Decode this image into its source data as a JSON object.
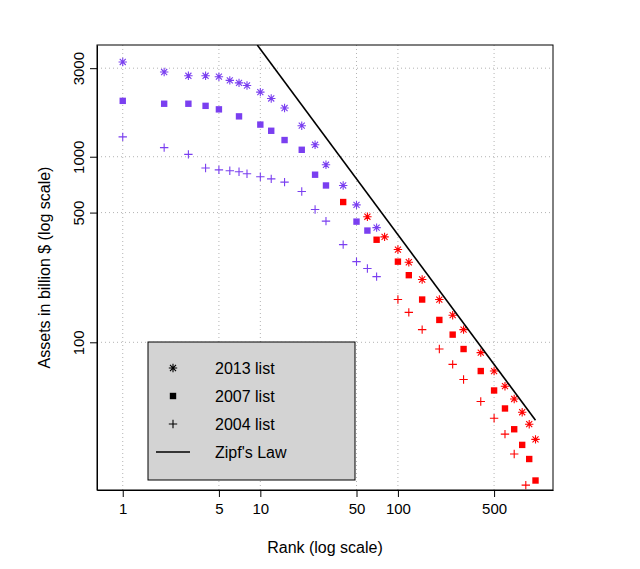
{
  "chart_data": {
    "type": "scatter",
    "xlabel": "Rank (log scale)",
    "ylabel": "Assets in billion $ (log scale)",
    "log": true,
    "grid": true,
    "legend": "bottomleft",
    "xlim": [
      0.65,
      1340
    ],
    "ylim": [
      16,
      4000
    ],
    "xticks": [
      1,
      5,
      10,
      50,
      100,
      500
    ],
    "yticks": [
      100,
      500,
      1000,
      3000
    ],
    "series": [
      {
        "name": "2013 list",
        "marker": "asterisk",
        "color": "#7a3ff0",
        "x": [
          1,
          2,
          3,
          4,
          5,
          6,
          7,
          8,
          10,
          12,
          15,
          20,
          25,
          30,
          40,
          50,
          60,
          70,
          80,
          100,
          120,
          150,
          200,
          250,
          300,
          400,
          500,
          600,
          700,
          800,
          900,
          1000
        ],
        "values": [
          3240,
          2860,
          2730,
          2730,
          2700,
          2580,
          2500,
          2420,
          2230,
          2060,
          1830,
          1470,
          1160,
          905,
          700,
          550,
          475,
          415,
          370,
          316,
          270,
          218,
          170,
          140,
          117,
          88,
          70,
          58,
          49.5,
          42,
          36.2,
          30
        ],
        "colors": [
          "#7a3ff0",
          "#7a3ff0",
          "#7a3ff0",
          "#7a3ff0",
          "#7a3ff0",
          "#7a3ff0",
          "#7a3ff0",
          "#7a3ff0",
          "#7a3ff0",
          "#7a3ff0",
          "#7a3ff0",
          "#7a3ff0",
          "#7a3ff0",
          "#7a3ff0",
          "#7a3ff0",
          "#7a3ff0",
          "#ff0000",
          "#7a3ff0",
          "#ff0000",
          "#ff0000",
          "#ff0000",
          "#ff0000",
          "#ff0000",
          "#ff0000",
          "#ff0000",
          "#ff0000",
          "#ff0000",
          "#ff0000",
          "#ff0000",
          "#ff0000",
          "#ff0000",
          "#ff0000"
        ]
      },
      {
        "name": "2007 list",
        "marker": "square",
        "color": "#7a3ff0",
        "x": [
          1,
          2,
          3,
          4,
          5,
          7,
          10,
          12,
          15,
          20,
          25,
          30,
          40,
          50,
          60,
          70,
          100,
          120,
          150,
          200,
          250,
          300,
          400,
          500,
          600,
          700,
          800,
          900,
          1000
        ],
        "values": [
          2000,
          1930,
          1930,
          1880,
          1800,
          1650,
          1490,
          1380,
          1230,
          1090,
          800,
          700,
          570,
          447,
          400,
          357,
          272,
          230,
          170,
          132,
          110,
          92,
          70,
          55,
          44,
          34,
          28,
          23.5,
          18
        ],
        "colors": [
          "#7a3ff0",
          "#7a3ff0",
          "#7a3ff0",
          "#7a3ff0",
          "#7a3ff0",
          "#7a3ff0",
          "#7a3ff0",
          "#7a3ff0",
          "#7a3ff0",
          "#7a3ff0",
          "#7a3ff0",
          "#7a3ff0",
          "#ff0000",
          "#7a3ff0",
          "#7a3ff0",
          "#ff0000",
          "#ff0000",
          "#ff0000",
          "#ff0000",
          "#ff0000",
          "#ff0000",
          "#ff0000",
          "#ff0000",
          "#ff0000",
          "#ff0000",
          "#ff0000",
          "#ff0000",
          "#ff0000",
          "#ff0000"
        ]
      },
      {
        "name": "2004 list",
        "marker": "plus",
        "color": "#7a3ff0",
        "x": [
          1,
          2,
          3,
          4,
          5,
          6,
          7,
          8,
          10,
          12,
          15,
          20,
          25,
          30,
          40,
          50,
          60,
          70,
          100,
          120,
          150,
          200,
          250,
          300,
          400,
          500,
          600,
          700,
          850
        ],
        "values": [
          1280,
          1120,
          1030,
          870,
          850,
          840,
          830,
          810,
          780,
          760,
          730,
          650,
          520,
          450,
          336,
          272,
          250,
          226,
          170,
          145,
          117,
          92,
          76,
          63,
          48,
          39,
          32,
          25,
          17
        ],
        "colors": [
          "#7a3ff0",
          "#7a3ff0",
          "#7a3ff0",
          "#7a3ff0",
          "#7a3ff0",
          "#7a3ff0",
          "#7a3ff0",
          "#7a3ff0",
          "#7a3ff0",
          "#7a3ff0",
          "#7a3ff0",
          "#7a3ff0",
          "#7a3ff0",
          "#7a3ff0",
          "#7a3ff0",
          "#7a3ff0",
          "#7a3ff0",
          "#7a3ff0",
          "#ff0000",
          "#ff0000",
          "#ff0000",
          "#ff0000",
          "#ff0000",
          "#ff0000",
          "#ff0000",
          "#ff0000",
          "#ff0000",
          "#ff0000",
          "#ff0000"
        ]
      },
      {
        "name": "Zipf's Law",
        "type": "line",
        "color": "#000000",
        "line_style": "solid",
        "x": [
          9.5,
          1000
        ],
        "values": [
          4000,
          38
        ]
      }
    ]
  }
}
